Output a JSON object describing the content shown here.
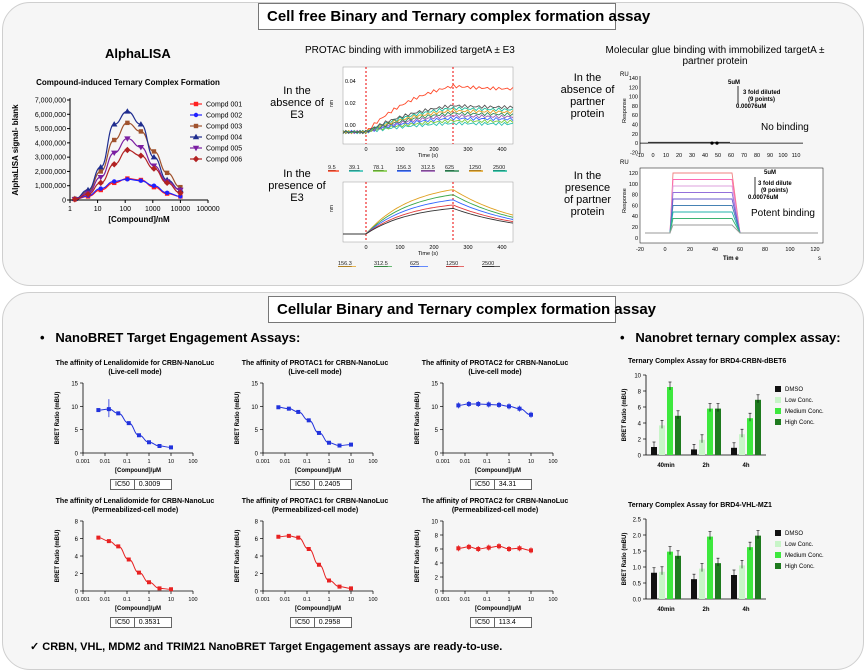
{
  "top_panel": {
    "title": "Cell free Binary and Ternary complex formation assay",
    "alphalisa": {
      "heading": "AlphaLISA",
      "chart_title": "Compound-induced Ternary Complex Formation",
      "ylabel": "AlphaLISA signal- blank",
      "xlabel": "[Compound]/nM",
      "yticks": [
        "0",
        "1,000,000",
        "2,000,000",
        "3,000,000",
        "4,000,000",
        "5,000,000",
        "6,000,000",
        "7,000,000"
      ],
      "xticks": [
        "1",
        "10",
        "100",
        "1000",
        "10000",
        "100000"
      ]
    },
    "protac": {
      "heading": "PROTAC binding with immobilized targetA ± E3",
      "absence_label": "In the absence of E3",
      "presence_label": "In the presence of E3",
      "top_y_ticks": [
        "0.04",
        "0.02",
        "0.00"
      ],
      "top_ylabel": "nm",
      "bottom_ylabel": "nm",
      "time_label": "Time (s)",
      "time_ticks": [
        "0",
        "100",
        "200",
        "300",
        "400"
      ],
      "conc_top": [
        "19.5",
        "39.1",
        "78.1",
        "156.3",
        "312.5",
        "625",
        "1250",
        "2500"
      ],
      "conc_bottom": [
        "156.3",
        "312.5",
        "625",
        "1250",
        "2500"
      ]
    },
    "glue": {
      "heading": "Molecular glue binding with immobilized targetA ± partner protein",
      "absence_label": "In the absence of partner protein",
      "presence_label": "In the presence of partner protein",
      "unit": "RU",
      "ylabel": "Response",
      "top_yticks": [
        "140",
        "120",
        "100",
        "80",
        "60",
        "40",
        "20",
        "0",
        "-20"
      ],
      "top_xticks": [
        "-10",
        "0",
        "10",
        "20",
        "30",
        "40",
        "50",
        "60",
        "70",
        "80",
        "90",
        "100",
        "110"
      ],
      "top_note_1": "5uM",
      "top_note_2": "3 fold diluted",
      "top_note_3": "(9 points)",
      "top_note_4": "0.00076uM",
      "top_result": "No binding",
      "bottom_yticks": [
        "120",
        "100",
        "80",
        "60",
        "40",
        "20",
        "0"
      ],
      "bottom_xticks": [
        "-20",
        "0",
        "20",
        "40",
        "60",
        "80",
        "100",
        "120"
      ],
      "bottom_note_1": "5uM",
      "bottom_note_2": "3 fold dilute",
      "bottom_note_3": "(9 points)",
      "bottom_note_4": "0.00076uM",
      "bottom_result": "Potent binding",
      "time_label": "Tim e",
      "time_unit": "s"
    }
  },
  "bottom_panel": {
    "title": "Cellular Binary and Ternary complex formation assay",
    "nanobret_heading": "NanoBRET Target Engagement Assays:",
    "ternary_heading": "Nanobret ternary complex assay:",
    "footer": "✓  CRBN, VHL, MDM2 and TRIM21 NanoBRET Target Engagement assays are ready-to-use.",
    "dose_xlabel": "[Compound]/μM",
    "dose_ylabel": "BRET Ratio (mBU)",
    "dose_xticks": [
      "0.001",
      "0.01",
      "0.1",
      "1",
      "10",
      "100"
    ],
    "ic50_label": "IC50",
    "dose_panels": [
      {
        "title1": "The affinity of Lenalidomide for CRBN-NanoLuc",
        "title2": "(Live-cell mode)",
        "ic50": "0.3009",
        "yticks": [
          "15",
          "10",
          "5",
          "0"
        ]
      },
      {
        "title1": "The affinity of PROTAC1 for CRBN-NanoLuc",
        "title2": "(Live-cell mode)",
        "ic50": "0.2405",
        "yticks": [
          "15",
          "10",
          "5",
          "0"
        ]
      },
      {
        "title1": "The affinity of PROTAC2 for CRBN-NanoLuc",
        "title2": "(Live-cell mode)",
        "ic50": "34.31",
        "yticks": [
          "15",
          "10",
          "5",
          "0"
        ]
      },
      {
        "title1": "The affinity of Lenalidomide for CRBN-NanoLuc",
        "title2": "(Permeabilized-cell mode)",
        "ic50": "0.3531",
        "yticks": [
          "8",
          "6",
          "4",
          "2",
          "0"
        ]
      },
      {
        "title1": "The affinity of PROTAC1 for CRBN-NanoLuc",
        "title2": "(Permeabilized-cell mode)",
        "ic50": "0.2958",
        "yticks": [
          "8",
          "6",
          "4",
          "2",
          "0"
        ]
      },
      {
        "title1": "The affinity of PROTAC2 for CRBN-NanoLuc",
        "title2": "(Permeabilized-cell mode)",
        "ic50": "113.4",
        "yticks": [
          "10",
          "8",
          "6",
          "4",
          "2",
          "0"
        ]
      }
    ],
    "ternary_ylabel": "BRET Ratio (mBU)",
    "ternary_categories": [
      "40min",
      "2h",
      "4h"
    ],
    "legend": [
      "DMSO",
      "Low Conc.",
      "Medium Conc.",
      "High Conc."
    ],
    "ternary1_title": "Ternary Complex Assay for BRD4-CRBN-dBET6",
    "ternary1_yticks": [
      "10",
      "8",
      "6",
      "4",
      "2",
      "0"
    ],
    "ternary2_title": "Ternary Complex Assay for BRD4-VHL-MZ1",
    "ternary2_yticks": [
      "2.5",
      "2.0",
      "1.5",
      "1.0",
      "0.5",
      "0.0"
    ]
  },
  "chart_data": [
    {
      "type": "line",
      "title": "Compound-induced Ternary Complex Formation",
      "xlabel": "[Compound]/nM",
      "ylabel": "AlphaLISA signal- blank",
      "xscale": "log",
      "xlim": [
        1,
        100000
      ],
      "ylim": [
        0,
        7000000
      ],
      "x": [
        1.5,
        4.5,
        13,
        40,
        120,
        370,
        1100,
        3300,
        10000
      ],
      "series": [
        {
          "name": "Compd 001",
          "color": "#ff2020",
          "marker": "square",
          "values": [
            50000,
            250000,
            700000,
            1200000,
            1500000,
            1400000,
            900000,
            450000,
            250000
          ]
        },
        {
          "name": "Compd 002",
          "color": "#2020ff",
          "marker": "circle",
          "values": [
            50000,
            300000,
            800000,
            1300000,
            1450000,
            1350000,
            1000000,
            500000,
            250000
          ]
        },
        {
          "name": "Compd 003",
          "color": "#a0522d",
          "marker": "square",
          "values": [
            80000,
            600000,
            2000000,
            4200000,
            5400000,
            4800000,
            3400000,
            1900000,
            900000
          ]
        },
        {
          "name": "Compd 004",
          "color": "#1f2d8f",
          "marker": "triangle",
          "values": [
            80000,
            700000,
            2300000,
            5300000,
            6200000,
            5300000,
            3000000,
            1400000,
            700000
          ]
        },
        {
          "name": "Compd 005",
          "color": "#7b1fa2",
          "marker": "triangle-down",
          "values": [
            60000,
            500000,
            1600000,
            3300000,
            4300000,
            3700000,
            2400000,
            1300000,
            700000
          ]
        },
        {
          "name": "Compd 006",
          "color": "#b22222",
          "marker": "diamond",
          "values": [
            50000,
            400000,
            1200000,
            2500000,
            3500000,
            3100000,
            2200000,
            1200000,
            500000
          ]
        }
      ]
    },
    {
      "type": "scatter",
      "title": "The affinity of Lenalidomide for CRBN-NanoLuc (Live-cell mode)",
      "xscale": "log",
      "ylim": [
        0,
        15
      ],
      "x": [
        0.005,
        0.015,
        0.04,
        0.12,
        0.35,
        1,
        3,
        10
      ],
      "values": [
        9.2,
        9.4,
        8.5,
        6.4,
        3.8,
        2.3,
        1.5,
        1.2
      ],
      "ic50": 0.3009
    },
    {
      "type": "scatter",
      "title": "The affinity of PROTAC1 for CRBN-NanoLuc (Live-cell mode)",
      "xscale": "log",
      "ylim": [
        0,
        15
      ],
      "x": [
        0.005,
        0.015,
        0.04,
        0.12,
        0.35,
        1,
        3,
        10
      ],
      "values": [
        9.8,
        9.5,
        8.8,
        7.0,
        4.3,
        2.2,
        1.6,
        1.8
      ],
      "ic50": 0.2405
    },
    {
      "type": "scatter",
      "title": "The affinity of PROTAC2 for CRBN-NanoLuc (Live-cell mode)",
      "xscale": "log",
      "ylim": [
        0,
        15
      ],
      "x": [
        0.005,
        0.015,
        0.04,
        0.12,
        0.35,
        1,
        3,
        10
      ],
      "values": [
        10.2,
        10.5,
        10.5,
        10.4,
        10.3,
        10.0,
        9.5,
        8.2
      ],
      "ic50": 34.31
    },
    {
      "type": "scatter",
      "title": "The affinity of Lenalidomide for CRBN-NanoLuc (Permeabilized-cell mode)",
      "xscale": "log",
      "ylim": [
        0,
        8
      ],
      "x": [
        0.005,
        0.015,
        0.04,
        0.12,
        0.35,
        1,
        3,
        10
      ],
      "values": [
        6.1,
        5.7,
        5.1,
        3.6,
        2.1,
        1.0,
        0.3,
        0.2
      ],
      "ic50": 0.3531
    },
    {
      "type": "scatter",
      "title": "The affinity of PROTAC1 for CRBN-NanoLuc (Permeabilized-cell mode)",
      "xscale": "log",
      "ylim": [
        0,
        8
      ],
      "x": [
        0.005,
        0.015,
        0.04,
        0.12,
        0.35,
        1,
        3,
        10
      ],
      "values": [
        6.2,
        6.3,
        6.1,
        4.8,
        3.0,
        1.2,
        0.5,
        0.3
      ],
      "ic50": 0.2958
    },
    {
      "type": "scatter",
      "title": "The affinity of PROTAC2 for CRBN-NanoLuc (Permeabilized-cell mode)",
      "xscale": "log",
      "ylim": [
        0,
        10
      ],
      "x": [
        0.005,
        0.015,
        0.04,
        0.12,
        0.35,
        1,
        3,
        10
      ],
      "values": [
        6.1,
        6.3,
        6.0,
        6.2,
        6.4,
        6.0,
        6.1,
        5.8
      ],
      "ic50": 113.4
    },
    {
      "type": "bar",
      "title": "Ternary Complex Assay for BRD4-CRBN-dBET6",
      "categories": [
        "40min",
        "2h",
        "4h"
      ],
      "ylim": [
        0,
        10
      ],
      "series": [
        {
          "name": "DMSO",
          "color": "#111111",
          "values": [
            1.0,
            0.7,
            0.9
          ]
        },
        {
          "name": "Low Conc.",
          "color": "#c8f5c8",
          "values": [
            3.7,
            1.9,
            2.6
          ]
        },
        {
          "name": "Medium Conc.",
          "color": "#3ee83e",
          "values": [
            8.5,
            5.8,
            4.6
          ]
        },
        {
          "name": "High Conc.",
          "color": "#1e7a1e",
          "values": [
            4.9,
            5.8,
            6.9
          ]
        }
      ]
    },
    {
      "type": "bar",
      "title": "Ternary Complex Assay for BRD4-VHL-MZ1",
      "categories": [
        "40min",
        "2h",
        "4h"
      ],
      "ylim": [
        0,
        2.5
      ],
      "series": [
        {
          "name": "DMSO",
          "color": "#111111",
          "values": [
            0.82,
            0.62,
            0.75
          ]
        },
        {
          "name": "Low Conc.",
          "color": "#c8f5c8",
          "values": [
            0.85,
            0.95,
            1.05
          ]
        },
        {
          "name": "Medium Conc.",
          "color": "#3ee83e",
          "values": [
            1.48,
            1.95,
            1.62
          ]
        },
        {
          "name": "High Conc.",
          "color": "#1e7a1e",
          "values": [
            1.35,
            1.12,
            1.98
          ]
        }
      ]
    }
  ]
}
